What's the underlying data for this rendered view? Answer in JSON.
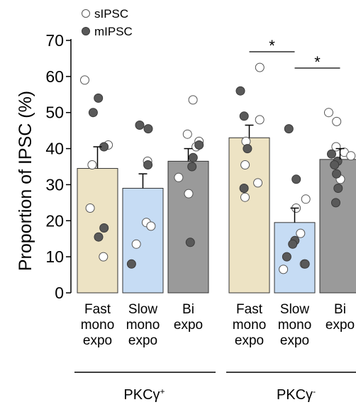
{
  "chart_data": {
    "type": "bar",
    "ylabel": "Proportion of IPSC (%)",
    "ylim": [
      0,
      70
    ],
    "yticks": [
      0,
      10,
      20,
      30,
      40,
      50,
      60,
      70
    ],
    "legend": {
      "placement": "top-left",
      "items": [
        {
          "label": "sIPSC",
          "marker": "open-circle"
        },
        {
          "label": "mIPSC",
          "marker": "filled-circle"
        }
      ]
    },
    "groups": [
      {
        "label": "PKCγ+",
        "label_main": "PKCγ",
        "label_sup": "+",
        "bars": [
          {
            "category_lines": [
              "Fast",
              "mono",
              "expo"
            ],
            "mean": 34.5,
            "sem": 6.0,
            "color": "#ede3c4",
            "sIPSC": [
              59,
              41,
              35.5,
              23.5,
              10
            ],
            "mIPSC": [
              54,
              50,
              40.5,
              18,
              15.5
            ]
          },
          {
            "category_lines": [
              "Slow",
              "mono",
              "expo"
            ],
            "mean": 29,
            "sem": 4.0,
            "color": "#c6dcf4",
            "sIPSC": [
              36.5,
              19.5,
              18.5,
              13.5
            ],
            "mIPSC": [
              46.5,
              45.5,
              35.5,
              8
            ]
          },
          {
            "category_lines": [
              "Bi",
              "expo"
            ],
            "mean": 36.5,
            "sem": 3.5,
            "color": "#9a9a9a",
            "sIPSC": [
              53.5,
              44,
              42,
              40.5,
              32,
              27.5
            ],
            "mIPSC": [
              41,
              37.5,
              35,
              14
            ]
          }
        ]
      },
      {
        "label": "PKCγ-",
        "label_main": "PKCγ",
        "label_sup": "-",
        "bars": [
          {
            "category_lines": [
              "Fast",
              "mono",
              "expo"
            ],
            "mean": 43,
            "sem": 3.5,
            "color": "#ede3c4",
            "sIPSC": [
              62.5,
              48,
              42,
              35.5,
              30.5,
              26.5
            ],
            "mIPSC": [
              56,
              49,
              40,
              29
            ]
          },
          {
            "category_lines": [
              "Slow",
              "mono",
              "expo"
            ],
            "mean": 19.5,
            "sem": 4.0,
            "color": "#c6dcf4",
            "sIPSC": [
              26,
              23.5,
              16.5,
              8,
              6.5
            ],
            "mIPSC": [
              45.5,
              31.5,
              14.5,
              13.5,
              10,
              8
            ]
          },
          {
            "category_lines": [
              "Bi",
              "expo"
            ],
            "mean": 37,
            "sem": 3.0,
            "color": "#9a9a9a",
            "sIPSC": [
              50,
              47.5,
              40.5,
              39,
              38,
              31.5
            ],
            "mIPSC": [
              38.5,
              36.5,
              35.5,
              33,
              29,
              25
            ]
          }
        ]
      }
    ],
    "significance": [
      {
        "group": 1,
        "from": 0,
        "to": 1,
        "label": "*"
      },
      {
        "group": 1,
        "from": 1,
        "to": 2,
        "label": "*"
      }
    ]
  }
}
